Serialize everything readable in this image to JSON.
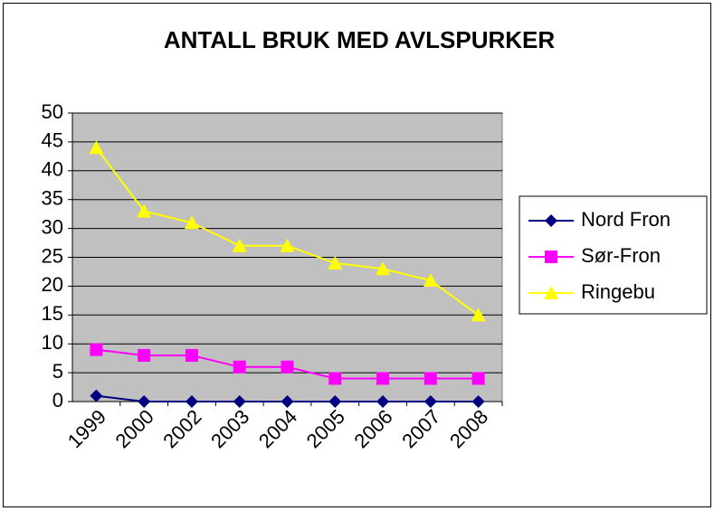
{
  "chart_data": {
    "type": "line",
    "title": "ANTALL BRUK MED AVLSPURKER",
    "categories": [
      "1999",
      "2000",
      "2002",
      "2003",
      "2004",
      "2005",
      "2006",
      "2007",
      "2008"
    ],
    "series": [
      {
        "name": "Nord Fron",
        "color": "#000080",
        "marker": "diamond",
        "values": [
          1,
          0,
          0,
          0,
          0,
          0,
          0,
          0,
          0
        ]
      },
      {
        "name": "Sør-Fron",
        "color": "#ff00ff",
        "marker": "square",
        "values": [
          9,
          8,
          8,
          6,
          6,
          4,
          4,
          4,
          4
        ]
      },
      {
        "name": "Ringebu",
        "color": "#ffff00",
        "marker": "triangle",
        "values": [
          44,
          33,
          31,
          27,
          27,
          24,
          23,
          21,
          15
        ]
      }
    ],
    "ylim": [
      0,
      50
    ],
    "yticks": [
      0,
      5,
      10,
      15,
      20,
      25,
      30,
      35,
      40,
      45,
      50
    ],
    "grid": true,
    "plot_background": "#c0c0c0",
    "legend": "right"
  }
}
